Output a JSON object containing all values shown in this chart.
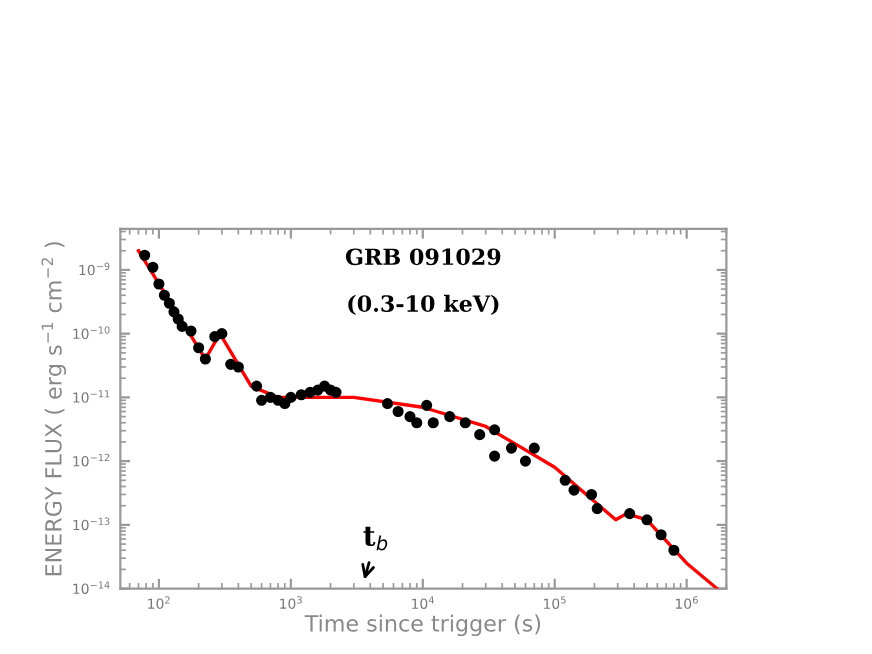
{
  "chart_data": {
    "type": "scatter",
    "xlabel": "Time since trigger (s)",
    "ylabel": "ENERGY FLUX ( erg s$^{−1}$ cm$^{−2}$ )",
    "log": "xy",
    "marker": "circle",
    "grid": false,
    "xlim": [
      51,
      2000000
    ],
    "ylim": [
      1e-14,
      4.4e-09
    ],
    "xticks": [
      {
        "value": 100,
        "label": "10$^{2}$"
      },
      {
        "value": 1000,
        "label": "10$^{3}$"
      },
      {
        "value": 10000,
        "label": "10$^{4}$"
      },
      {
        "value": 100000,
        "label": "10$^{5}$"
      },
      {
        "value": 1000000,
        "label": "10$^{6}$"
      }
    ],
    "yticks": [
      {
        "value": 1e-14,
        "label": "10$^{−14}$"
      },
      {
        "value": 1e-13,
        "label": "10$^{−13}$"
      },
      {
        "value": 1e-12,
        "label": "10$^{−12}$"
      },
      {
        "value": 1e-11,
        "label": "10$^{−11}$"
      },
      {
        "value": 1e-10,
        "label": "10$^{−10}$"
      },
      {
        "value": 1e-09,
        "label": "10$^{−9}$"
      }
    ],
    "annotations": [
      "GRB 091029",
      "(0.3-10 keV)",
      "t$_{b}$"
    ],
    "series": [
      {
        "color": "#000000",
        "x": [
          78,
          90,
          100,
          110,
          120,
          130,
          140,
          150,
          175,
          200,
          225,
          265,
          300,
          350,
          400,
          550,
          600,
          700,
          800,
          900,
          1000,
          1200,
          1400,
          1600,
          1800,
          2000,
          2200,
          5400,
          6500,
          8000,
          9000,
          10700,
          12000,
          16000,
          21000,
          27000,
          35000,
          35000,
          47000,
          60000,
          70000,
          120000,
          140000,
          190000,
          210000,
          370000,
          500000,
          640000,
          800000
        ],
        "values": [
          1.7e-09,
          1.1e-09,
          6e-10,
          4e-10,
          3e-10,
          2.2e-10,
          1.7e-10,
          1.3e-10,
          1.1e-10,
          6e-11,
          4e-11,
          9e-11,
          1e-10,
          3.3e-11,
          3e-11,
          1.5e-11,
          9e-12,
          1e-11,
          9e-12,
          8e-12,
          1e-11,
          1.1e-11,
          1.2e-11,
          1.3e-11,
          1.5e-11,
          1.3e-11,
          1.2e-11,
          8e-12,
          6e-12,
          5e-12,
          4e-12,
          7.5e-12,
          4e-12,
          5e-12,
          4e-12,
          2.6e-12,
          3.1e-12,
          1.2e-12,
          1.6e-12,
          1e-12,
          1.6e-12,
          5e-13,
          3.5e-13,
          3e-13,
          1.8e-13,
          1.5e-13,
          1.2e-13,
          7e-14,
          4e-14
        ]
      },
      {
        "type": "line",
        "color": "#ff0000",
        "marker": "none",
        "x": [
          70,
          225,
          290,
          500,
          800,
          3000,
          10000,
          30000,
          100000,
          290000,
          350000,
          500000,
          1000000,
          1700000
        ],
        "values": [
          2e-09,
          4e-11,
          1e-10,
          1.5e-11,
          1e-11,
          1e-11,
          7e-12,
          3.5e-12,
          8e-13,
          1.2e-13,
          1.5e-13,
          1.2e-13,
          2.5e-14,
          1e-14
        ]
      }
    ]
  }
}
